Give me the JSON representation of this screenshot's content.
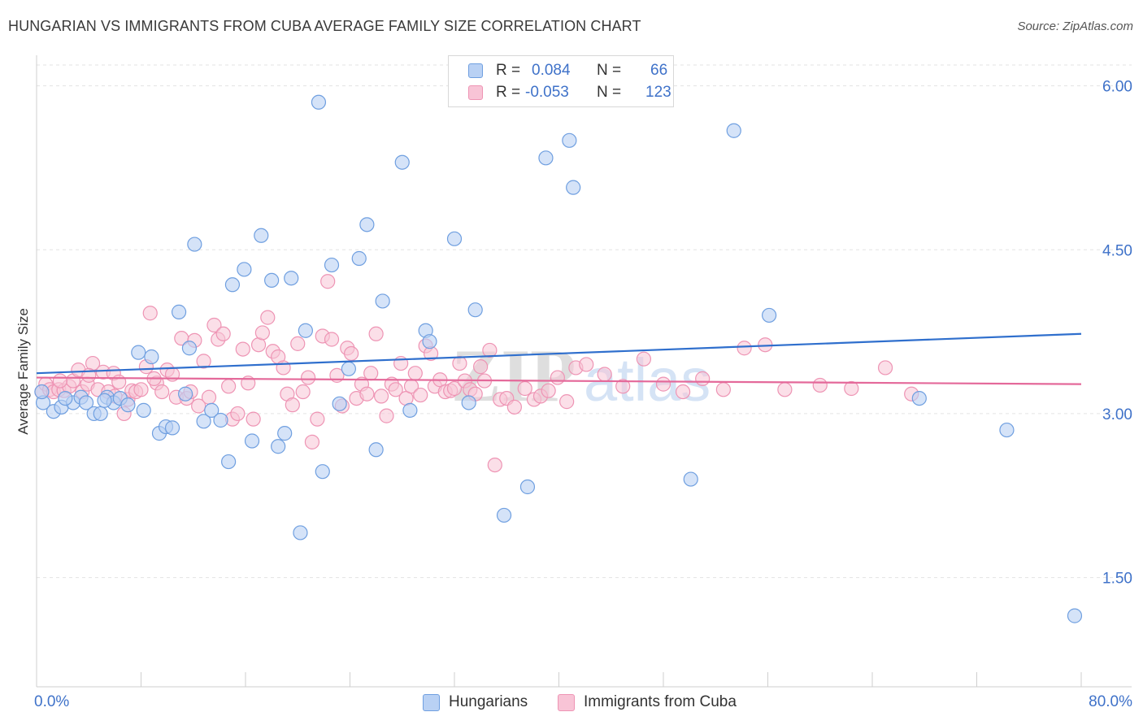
{
  "title": "HUNGARIAN VS IMMIGRANTS FROM CUBA AVERAGE FAMILY SIZE CORRELATION CHART",
  "source": "Source: ZipAtlas.com",
  "watermark": {
    "zip": "ZIP",
    "atlas": "atlas"
  },
  "legend": {
    "r_label": "R =",
    "n_label": "N =",
    "hungarians": {
      "r": "0.084",
      "n": "66"
    },
    "cuba": {
      "r": "-0.053",
      "n": "123"
    }
  },
  "colors": {
    "blue_fill": "#b9d1f4",
    "blue_stroke": "#6f9fe0",
    "blue_line": "#2f6fcd",
    "pink_fill": "#f8c4d6",
    "pink_stroke": "#ee94b4",
    "pink_line": "#e4699a",
    "axis_text": "#3f72c9",
    "grid": "#e3e3e3"
  },
  "chart_data": {
    "type": "scatter",
    "title": "HUNGARIAN VS IMMIGRANTS FROM CUBA AVERAGE FAMILY SIZE CORRELATION CHART",
    "xlabel": "",
    "ylabel": "Average Family Size",
    "xlim": [
      0,
      80
    ],
    "ylim": [
      0.5,
      6.25
    ],
    "x_tick_labels": [
      "0.0%",
      "80.0%"
    ],
    "y_ticks": [
      1.5,
      3.0,
      4.5,
      6.0
    ],
    "y_tick_labels": [
      "1.50",
      "3.00",
      "4.50",
      "6.00"
    ],
    "grid": true,
    "legend_position": "top-center",
    "series": [
      {
        "name": "Hungarians",
        "r": 0.084,
        "n": 66,
        "trend": {
          "x": [
            0,
            80
          ],
          "y": [
            3.37,
            3.73
          ]
        },
        "points": [
          [
            0.5,
            3.1
          ],
          [
            1.3,
            3.02
          ],
          [
            1.9,
            3.06
          ],
          [
            2.8,
            3.1
          ],
          [
            3.4,
            3.15
          ],
          [
            3.8,
            3.1
          ],
          [
            4.4,
            3.0
          ],
          [
            4.9,
            3.0
          ],
          [
            5.4,
            3.15
          ],
          [
            5.9,
            3.1
          ],
          [
            6.4,
            3.14
          ],
          [
            7.0,
            3.08
          ],
          [
            7.8,
            3.56
          ],
          [
            8.2,
            3.03
          ],
          [
            8.8,
            3.52
          ],
          [
            9.4,
            2.82
          ],
          [
            9.9,
            2.88
          ],
          [
            10.4,
            2.87
          ],
          [
            10.9,
            3.93
          ],
          [
            11.4,
            3.18
          ],
          [
            11.7,
            3.6
          ],
          [
            12.1,
            4.55
          ],
          [
            12.8,
            2.93
          ],
          [
            13.4,
            3.03
          ],
          [
            14.1,
            2.94
          ],
          [
            14.7,
            2.56
          ],
          [
            15.0,
            4.18
          ],
          [
            15.9,
            4.32
          ],
          [
            16.5,
            2.75
          ],
          [
            17.2,
            4.63
          ],
          [
            18.0,
            4.22
          ],
          [
            18.5,
            2.7
          ],
          [
            19.0,
            2.82
          ],
          [
            19.5,
            4.24
          ],
          [
            20.2,
            1.91
          ],
          [
            20.6,
            3.76
          ],
          [
            21.6,
            5.85
          ],
          [
            21.9,
            2.47
          ],
          [
            22.6,
            4.36
          ],
          [
            23.2,
            3.09
          ],
          [
            23.9,
            3.41
          ],
          [
            24.7,
            4.42
          ],
          [
            25.3,
            4.73
          ],
          [
            26.0,
            2.67
          ],
          [
            26.5,
            4.03
          ],
          [
            28.0,
            5.3
          ],
          [
            28.6,
            3.03
          ],
          [
            29.8,
            3.76
          ],
          [
            30.1,
            3.66
          ],
          [
            32.0,
            4.6
          ],
          [
            33.1,
            3.1
          ],
          [
            33.6,
            3.95
          ],
          [
            35.8,
            2.07
          ],
          [
            37.6,
            2.33
          ],
          [
            39.0,
            5.34
          ],
          [
            40.8,
            5.5
          ],
          [
            41.1,
            5.07
          ],
          [
            50.1,
            2.4
          ],
          [
            53.4,
            5.59
          ],
          [
            56.1,
            3.9
          ],
          [
            67.6,
            3.14
          ],
          [
            74.3,
            2.85
          ],
          [
            79.5,
            1.15
          ],
          [
            0.4,
            3.2
          ],
          [
            2.2,
            3.14
          ],
          [
            5.2,
            3.12
          ]
        ]
      },
      {
        "name": "Immigrants from Cuba",
        "r": -0.053,
        "n": 123,
        "trend": {
          "x": [
            0,
            80
          ],
          "y": [
            3.33,
            3.27
          ]
        },
        "points": [
          [
            0.4,
            3.2
          ],
          [
            0.7,
            3.27
          ],
          [
            1.0,
            3.22
          ],
          [
            1.3,
            3.2
          ],
          [
            1.7,
            3.22
          ],
          [
            2.1,
            3.21
          ],
          [
            2.5,
            3.25
          ],
          [
            2.8,
            3.3
          ],
          [
            3.2,
            3.4
          ],
          [
            3.5,
            3.2
          ],
          [
            3.9,
            3.27
          ],
          [
            4.3,
            3.46
          ],
          [
            4.7,
            3.22
          ],
          [
            5.1,
            3.38
          ],
          [
            5.5,
            3.2
          ],
          [
            5.9,
            3.37
          ],
          [
            6.3,
            3.29
          ],
          [
            6.7,
            3.0
          ],
          [
            7.0,
            3.13
          ],
          [
            7.3,
            3.21
          ],
          [
            7.6,
            3.2
          ],
          [
            8.0,
            3.22
          ],
          [
            8.4,
            3.43
          ],
          [
            8.7,
            3.92
          ],
          [
            9.2,
            3.28
          ],
          [
            9.6,
            3.2
          ],
          [
            10.0,
            3.4
          ],
          [
            10.4,
            3.36
          ],
          [
            10.7,
            3.15
          ],
          [
            11.1,
            3.69
          ],
          [
            11.5,
            3.14
          ],
          [
            11.8,
            3.2
          ],
          [
            12.1,
            3.67
          ],
          [
            12.4,
            3.07
          ],
          [
            12.8,
            3.48
          ],
          [
            13.2,
            3.15
          ],
          [
            13.6,
            3.81
          ],
          [
            13.9,
            3.68
          ],
          [
            14.3,
            3.73
          ],
          [
            14.7,
            3.25
          ],
          [
            15.0,
            2.95
          ],
          [
            15.4,
            3.0
          ],
          [
            15.8,
            3.59
          ],
          [
            16.2,
            3.28
          ],
          [
            16.6,
            2.95
          ],
          [
            17.0,
            3.63
          ],
          [
            17.3,
            3.74
          ],
          [
            17.7,
            3.88
          ],
          [
            18.1,
            3.57
          ],
          [
            18.5,
            3.52
          ],
          [
            18.9,
            3.42
          ],
          [
            19.2,
            3.18
          ],
          [
            19.6,
            3.08
          ],
          [
            20.0,
            3.64
          ],
          [
            20.4,
            3.2
          ],
          [
            20.8,
            3.33
          ],
          [
            21.1,
            2.74
          ],
          [
            21.5,
            2.95
          ],
          [
            21.9,
            3.71
          ],
          [
            22.3,
            4.21
          ],
          [
            22.6,
            3.68
          ],
          [
            23.0,
            3.35
          ],
          [
            23.4,
            3.07
          ],
          [
            23.8,
            3.6
          ],
          [
            24.1,
            3.55
          ],
          [
            24.5,
            3.14
          ],
          [
            24.9,
            3.27
          ],
          [
            25.3,
            3.18
          ],
          [
            25.6,
            3.37
          ],
          [
            26.0,
            3.73
          ],
          [
            26.4,
            3.16
          ],
          [
            26.8,
            2.98
          ],
          [
            27.2,
            3.27
          ],
          [
            27.5,
            3.22
          ],
          [
            27.9,
            3.46
          ],
          [
            28.3,
            3.14
          ],
          [
            28.7,
            3.25
          ],
          [
            29.0,
            3.37
          ],
          [
            29.4,
            3.17
          ],
          [
            29.8,
            3.62
          ],
          [
            30.2,
            3.55
          ],
          [
            30.5,
            3.25
          ],
          [
            30.9,
            3.31
          ],
          [
            31.3,
            3.2
          ],
          [
            31.7,
            3.21
          ],
          [
            32.0,
            3.23
          ],
          [
            32.4,
            3.46
          ],
          [
            32.8,
            3.3
          ],
          [
            33.2,
            3.22
          ],
          [
            33.6,
            3.18
          ],
          [
            34.0,
            3.43
          ],
          [
            34.3,
            3.3
          ],
          [
            34.7,
            3.58
          ],
          [
            35.1,
            2.53
          ],
          [
            35.5,
            3.13
          ],
          [
            36.0,
            3.14
          ],
          [
            36.6,
            3.06
          ],
          [
            37.4,
            3.23
          ],
          [
            38.1,
            3.13
          ],
          [
            38.6,
            3.16
          ],
          [
            39.2,
            3.21
          ],
          [
            39.9,
            3.33
          ],
          [
            40.6,
            3.11
          ],
          [
            41.3,
            3.42
          ],
          [
            42.1,
            3.45
          ],
          [
            43.5,
            3.36
          ],
          [
            44.9,
            3.25
          ],
          [
            46.5,
            3.5
          ],
          [
            48.0,
            3.27
          ],
          [
            49.5,
            3.2
          ],
          [
            51.0,
            3.32
          ],
          [
            52.6,
            3.22
          ],
          [
            54.2,
            3.6
          ],
          [
            55.8,
            3.63
          ],
          [
            57.3,
            3.22
          ],
          [
            60.0,
            3.26
          ],
          [
            62.4,
            3.23
          ],
          [
            65.0,
            3.42
          ],
          [
            67.0,
            3.18
          ],
          [
            1.8,
            3.3
          ],
          [
            4.0,
            3.35
          ],
          [
            6.0,
            3.16
          ],
          [
            9.0,
            3.32
          ]
        ]
      }
    ]
  }
}
